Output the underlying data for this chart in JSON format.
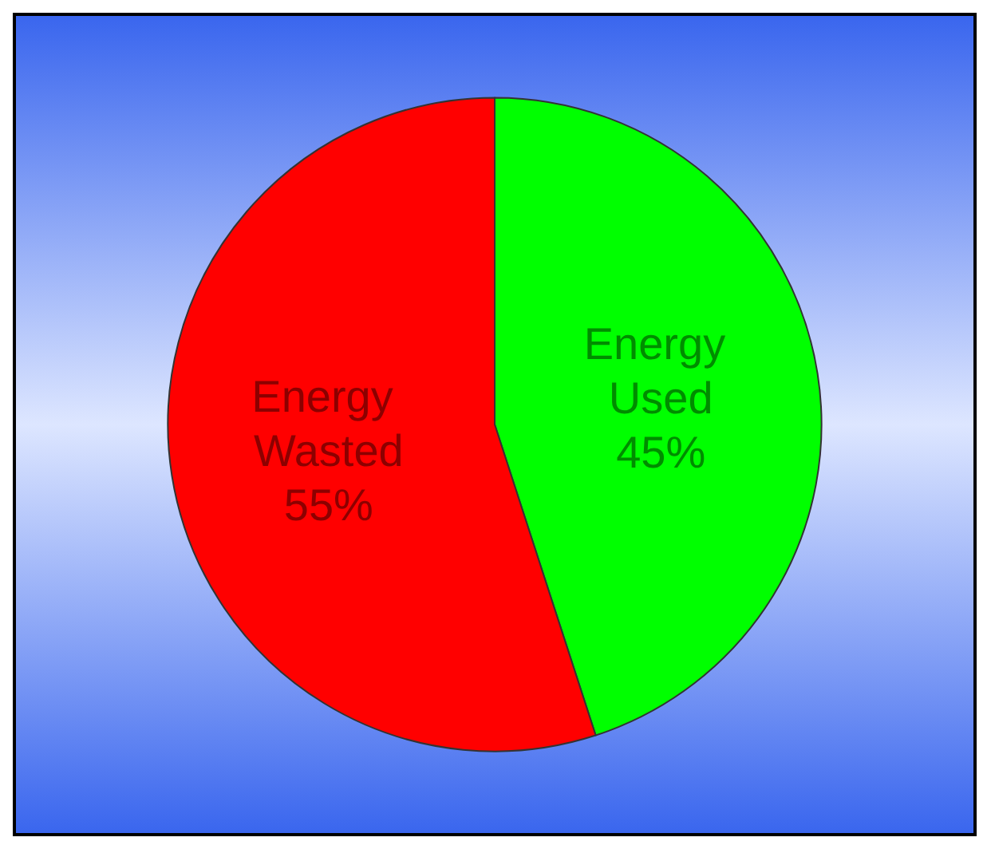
{
  "chart_data": {
    "type": "pie",
    "categories": [
      "Energy Used",
      "Energy Wasted"
    ],
    "values": [
      45,
      55
    ],
    "colors": [
      "#00ff00",
      "#ff0000"
    ],
    "value_labels": [
      "45%",
      "55%"
    ]
  }
}
